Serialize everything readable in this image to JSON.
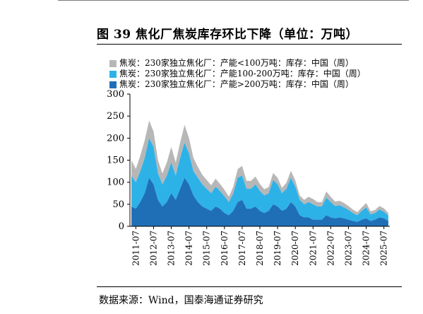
{
  "figure": {
    "title": "图 39 焦化厂焦炭库存环比下降（单位：万吨）",
    "source": "数据来源：Wind，国泰海通证券研究"
  },
  "chart_data": {
    "type": "area",
    "stacked": true,
    "ylim": [
      0,
      300
    ],
    "yticks": [
      0,
      50,
      100,
      150,
      200,
      250,
      300
    ],
    "xlim": [
      "2011-03",
      "2025-11"
    ],
    "xticks": [
      "2011-07",
      "2012-07",
      "2013-07",
      "2014-07",
      "2015-07",
      "2016-07",
      "2017-07",
      "2018-07",
      "2019-07",
      "2020-07",
      "2021-07",
      "2022-07",
      "2023-07",
      "2024-07",
      "2025-07"
    ],
    "legend_position": "top-left",
    "series": [
      {
        "name": "焦炭：230家独立焦化厂：产能>200万吨：库存：中国（周）",
        "color": "#1f6fb7",
        "values": [
          [
            2011.25,
            45
          ],
          [
            2011.5,
            40
          ],
          [
            2011.75,
            55
          ],
          [
            2012.0,
            75
          ],
          [
            2012.25,
            110
          ],
          [
            2012.5,
            95
          ],
          [
            2012.75,
            60
          ],
          [
            2013.0,
            45
          ],
          [
            2013.25,
            55
          ],
          [
            2013.5,
            75
          ],
          [
            2013.75,
            60
          ],
          [
            2014.0,
            85
          ],
          [
            2014.25,
            110
          ],
          [
            2014.5,
            95
          ],
          [
            2014.75,
            70
          ],
          [
            2015.0,
            55
          ],
          [
            2015.25,
            45
          ],
          [
            2015.5,
            40
          ],
          [
            2015.75,
            35
          ],
          [
            2016.0,
            45
          ],
          [
            2016.25,
            40
          ],
          [
            2016.5,
            30
          ],
          [
            2016.75,
            25
          ],
          [
            2017.0,
            35
          ],
          [
            2017.25,
            55
          ],
          [
            2017.5,
            60
          ],
          [
            2017.75,
            40
          ],
          [
            2018.0,
            40
          ],
          [
            2018.25,
            45
          ],
          [
            2018.5,
            35
          ],
          [
            2018.75,
            30
          ],
          [
            2019.0,
            35
          ],
          [
            2019.25,
            50
          ],
          [
            2019.5,
            45
          ],
          [
            2019.75,
            35
          ],
          [
            2020.0,
            40
          ],
          [
            2020.25,
            55
          ],
          [
            2020.5,
            45
          ],
          [
            2020.75,
            25
          ],
          [
            2021.0,
            20
          ],
          [
            2021.25,
            20
          ],
          [
            2021.5,
            15
          ],
          [
            2021.75,
            15
          ],
          [
            2022.0,
            15
          ],
          [
            2022.25,
            25
          ],
          [
            2022.5,
            20
          ],
          [
            2022.75,
            18
          ],
          [
            2023.0,
            20
          ],
          [
            2023.25,
            18
          ],
          [
            2023.5,
            15
          ],
          [
            2023.75,
            12
          ],
          [
            2024.0,
            10
          ],
          [
            2024.25,
            15
          ],
          [
            2024.5,
            18
          ],
          [
            2024.75,
            12
          ],
          [
            2025.0,
            15
          ],
          [
            2025.25,
            20
          ],
          [
            2025.5,
            18
          ],
          [
            2025.75,
            12
          ]
        ]
      },
      {
        "name": "焦炭：230家独立焦化厂：产能100-200万吨：库存：中国（周）",
        "color": "#2db2e8",
        "values": [
          [
            2011.25,
            70
          ],
          [
            2011.5,
            60
          ],
          [
            2011.75,
            70
          ],
          [
            2012.0,
            80
          ],
          [
            2012.25,
            90
          ],
          [
            2012.5,
            85
          ],
          [
            2012.75,
            60
          ],
          [
            2013.0,
            50
          ],
          [
            2013.25,
            60
          ],
          [
            2013.5,
            70
          ],
          [
            2013.75,
            55
          ],
          [
            2014.0,
            70
          ],
          [
            2014.25,
            80
          ],
          [
            2014.5,
            70
          ],
          [
            2014.75,
            55
          ],
          [
            2015.0,
            55
          ],
          [
            2015.25,
            50
          ],
          [
            2015.5,
            45
          ],
          [
            2015.75,
            40
          ],
          [
            2016.0,
            45
          ],
          [
            2016.25,
            40
          ],
          [
            2016.5,
            38
          ],
          [
            2016.75,
            30
          ],
          [
            2017.0,
            40
          ],
          [
            2017.25,
            55
          ],
          [
            2017.5,
            55
          ],
          [
            2017.75,
            45
          ],
          [
            2018.0,
            45
          ],
          [
            2018.25,
            50
          ],
          [
            2018.5,
            45
          ],
          [
            2018.75,
            40
          ],
          [
            2019.0,
            40
          ],
          [
            2019.25,
            55
          ],
          [
            2019.5,
            50
          ],
          [
            2019.75,
            40
          ],
          [
            2020.0,
            45
          ],
          [
            2020.25,
            55
          ],
          [
            2020.5,
            45
          ],
          [
            2020.75,
            35
          ],
          [
            2021.0,
            30
          ],
          [
            2021.25,
            35
          ],
          [
            2021.5,
            35
          ],
          [
            2021.75,
            30
          ],
          [
            2022.0,
            30
          ],
          [
            2022.25,
            40
          ],
          [
            2022.5,
            35
          ],
          [
            2022.75,
            28
          ],
          [
            2023.0,
            28
          ],
          [
            2023.25,
            25
          ],
          [
            2023.5,
            22
          ],
          [
            2023.75,
            18
          ],
          [
            2024.0,
            15
          ],
          [
            2024.25,
            20
          ],
          [
            2024.5,
            25
          ],
          [
            2024.75,
            15
          ],
          [
            2025.0,
            15
          ],
          [
            2025.25,
            18
          ],
          [
            2025.5,
            15
          ],
          [
            2025.75,
            12
          ]
        ]
      },
      {
        "name": "焦炭：230家独立焦化厂：产能<100万吨：库存：中国（周）",
        "color": "#b7b7b7",
        "values": [
          [
            2011.25,
            35
          ],
          [
            2011.5,
            30
          ],
          [
            2011.75,
            35
          ],
          [
            2012.0,
            40
          ],
          [
            2012.25,
            40
          ],
          [
            2012.5,
            35
          ],
          [
            2012.75,
            30
          ],
          [
            2013.0,
            25
          ],
          [
            2013.25,
            30
          ],
          [
            2013.5,
            35
          ],
          [
            2013.75,
            30
          ],
          [
            2014.0,
            35
          ],
          [
            2014.25,
            40
          ],
          [
            2014.5,
            35
          ],
          [
            2014.75,
            30
          ],
          [
            2015.0,
            25
          ],
          [
            2015.25,
            22
          ],
          [
            2015.5,
            20
          ],
          [
            2015.75,
            18
          ],
          [
            2016.0,
            18
          ],
          [
            2016.25,
            16
          ],
          [
            2016.5,
            15
          ],
          [
            2016.75,
            12
          ],
          [
            2017.0,
            15
          ],
          [
            2017.25,
            20
          ],
          [
            2017.5,
            22
          ],
          [
            2017.75,
            18
          ],
          [
            2018.0,
            18
          ],
          [
            2018.25,
            18
          ],
          [
            2018.5,
            16
          ],
          [
            2018.75,
            14
          ],
          [
            2019.0,
            14
          ],
          [
            2019.25,
            16
          ],
          [
            2019.5,
            15
          ],
          [
            2019.75,
            12
          ],
          [
            2020.0,
            14
          ],
          [
            2020.25,
            16
          ],
          [
            2020.5,
            14
          ],
          [
            2020.75,
            10
          ],
          [
            2021.0,
            10
          ],
          [
            2021.25,
            12
          ],
          [
            2021.5,
            12
          ],
          [
            2021.75,
            10
          ],
          [
            2022.0,
            10
          ],
          [
            2022.25,
            14
          ],
          [
            2022.5,
            12
          ],
          [
            2022.75,
            10
          ],
          [
            2023.0,
            10
          ],
          [
            2023.25,
            10
          ],
          [
            2023.5,
            9
          ],
          [
            2023.75,
            8
          ],
          [
            2024.0,
            7
          ],
          [
            2024.25,
            8
          ],
          [
            2024.5,
            10
          ],
          [
            2024.75,
            7
          ],
          [
            2025.0,
            7
          ],
          [
            2025.25,
            8
          ],
          [
            2025.5,
            8
          ],
          [
            2025.75,
            6
          ]
        ]
      }
    ]
  }
}
